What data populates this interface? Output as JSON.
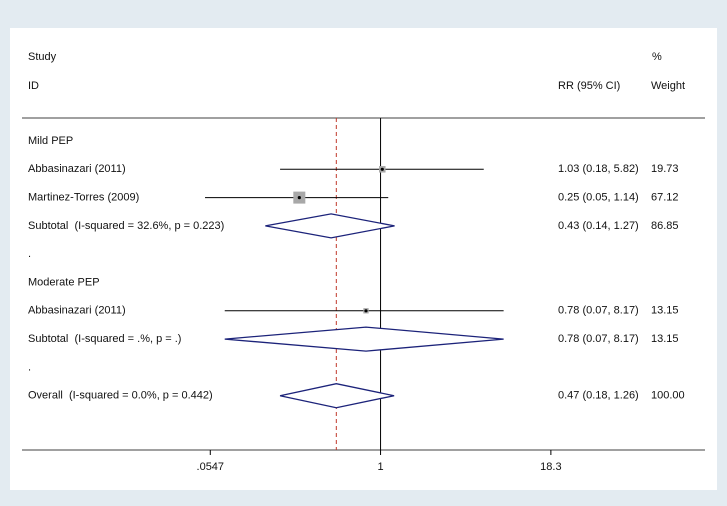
{
  "chart_data": {
    "type": "forest",
    "header": {
      "study": "Study",
      "id": "ID",
      "percent": "%",
      "ci": "RR (95% CI)",
      "weight": "Weight"
    },
    "rows": [
      {
        "kind": "group",
        "label": "Mild PEP"
      },
      {
        "kind": "study",
        "label": "Abbasinazari (2011)",
        "rr": 1.03,
        "lo": 0.18,
        "hi": 5.82,
        "ci_label": "1.03 (0.18, 5.82)",
        "weight": 19.73
      },
      {
        "kind": "study",
        "label": "Martinez-Torres (2009)",
        "rr": 0.25,
        "lo": 0.05,
        "hi": 1.14,
        "ci_label": "0.25 (0.05, 1.14)",
        "weight": 67.12
      },
      {
        "kind": "subtotal",
        "label": "Subtotal  (I-squared = 32.6%, p = 0.223)",
        "rr": 0.43,
        "lo": 0.14,
        "hi": 1.27,
        "ci_label": "0.43 (0.14, 1.27)",
        "weight": 86.85
      },
      {
        "kind": "blank",
        "label": "."
      },
      {
        "kind": "group",
        "label": "Moderate PEP"
      },
      {
        "kind": "study",
        "label": "Abbasinazari (2011)",
        "rr": 0.78,
        "lo": 0.07,
        "hi": 8.17,
        "ci_label": "0.78 (0.07, 8.17)",
        "weight": 13.15
      },
      {
        "kind": "subtotal",
        "label": "Subtotal  (I-squared = .%, p = .)",
        "rr": 0.78,
        "lo": 0.07,
        "hi": 8.17,
        "ci_label": "0.78 (0.07, 8.17)",
        "weight": 13.15
      },
      {
        "kind": "blank",
        "label": "."
      },
      {
        "kind": "overall",
        "label": "Overall  (I-squared = 0.0%, p = 0.442)",
        "rr": 0.47,
        "lo": 0.18,
        "hi": 1.26,
        "ci_label": "0.47 (0.18, 1.26)",
        "weight": {
          "value": 100,
          "label": "100.00"
        }
      }
    ],
    "xlim": [
      0.0022,
      254
    ],
    "xticks": [
      {
        "value": 0.0547,
        "label": ".0547"
      },
      1,
      18.3
    ],
    "log_x": true,
    "null_line": 1,
    "colors": {
      "diamond": "#1c237a",
      "square": "#a8a8a8",
      "reference": "#c0392b",
      "line": "#000000"
    }
  }
}
